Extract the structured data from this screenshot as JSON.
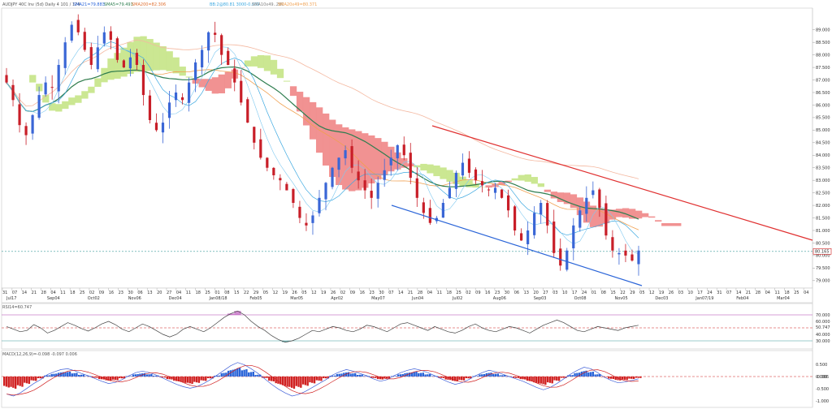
{
  "header": {
    "symbol_info": "AUDJPY 40C Inv (5d)  Daily  4  101 / 174",
    "sma21": "SMA21=79.883",
    "sma_b": "SMA5=79.491",
    "sma_c": "SMA200=82.306",
    "bb": "BB:2@80.81  3000-0.809",
    "ichimoku": "SMA10x49..280",
    "sma_d": "SMA20x49=80.371"
  },
  "colors": {
    "bull_candle": "#3a66d6",
    "bear_candle": "#c81e28",
    "cloud_bull": "#c8e68c",
    "cloud_bear": "#f08c8c",
    "sma_green": "#2e7d4f",
    "sma_orange": "#f0a050",
    "sma_cyan": "#3ca8e0",
    "trend_red": "#e03030",
    "trend_blue": "#2a64d8",
    "rsi_line": "#404040",
    "macd_hist_pos": "#2a64d8",
    "macd_hist_neg": "#d02020"
  },
  "chart_data": [
    {
      "type": "candlestick",
      "ylim": [
        78.8,
        89.8
      ],
      "price_ticks": [
        "89.000",
        "88.500",
        "88.000",
        "87.500",
        "87.000",
        "86.500",
        "86.000",
        "85.500",
        "85.000",
        "84.500",
        "84.000",
        "83.500",
        "83.000",
        "82.500",
        "82.000",
        "81.500",
        "81.000",
        "80.500",
        "80.000",
        "79.500",
        "79.000",
        "78.500"
      ],
      "current_price_label": "80.165",
      "x_tick_labels": [
        "31",
        "07",
        "14",
        "21",
        "28",
        "04",
        "11",
        "18",
        "25",
        "02",
        "09",
        "16",
        "23",
        "30",
        "06",
        "13",
        "20",
        "27",
        "04",
        "11",
        "18",
        "25",
        "01",
        "08",
        "15",
        "22",
        "29",
        "05",
        "12",
        "19",
        "26",
        "05",
        "12",
        "19",
        "26",
        "02",
        "09",
        "16",
        "23",
        "30",
        "07",
        "14",
        "21",
        "28",
        "04",
        "11",
        "18",
        "25",
        "02",
        "09",
        "16",
        "23",
        "30",
        "06",
        "13",
        "20",
        "27",
        "03",
        "10",
        "17",
        "24",
        "01",
        "08",
        "15",
        "22",
        "29",
        "05",
        "12",
        "19",
        "26",
        "03",
        "10",
        "17",
        "24",
        "31",
        "07",
        "14",
        "21",
        "28",
        "04",
        "11",
        "18",
        "25",
        "04"
      ],
      "month_labels": [
        "Jul17",
        "Sep04",
        "Oct02",
        "Nov06",
        "Dec04",
        "Jan08/18",
        "Feb05",
        "Mar05",
        "Apr02",
        "May07",
        "Jun04",
        "Jul02",
        "Aug06",
        "Sep03",
        "Oct08",
        "Nov05",
        "Dec03",
        "Jan07/19",
        "Feb04",
        "Mar04"
      ],
      "close_path": [
        86.9,
        86.2,
        85.2,
        84.8,
        85.6,
        86.4,
        86.9,
        86.7,
        87.6,
        88.5,
        89.2,
        88.9,
        88.2,
        87.6,
        88.3,
        88.9,
        88.6,
        87.8,
        87.5,
        87.9,
        87.6,
        86.4,
        85.4,
        85.0,
        85.3,
        86.1,
        86.5,
        86.2,
        86.9,
        87.7,
        88.2,
        88.9,
        88.8,
        88.0,
        87.6,
        86.9,
        86.1,
        85.3,
        84.5,
        83.9,
        83.5,
        83.2,
        83.0,
        82.6,
        82.1,
        81.5,
        81.2,
        81.6,
        82.3,
        82.9,
        83.5,
        83.9,
        84.2,
        83.5,
        83.0,
        82.6,
        82.3,
        82.9,
        83.4,
        83.9,
        84.4,
        84.0,
        83.1,
        82.3,
        81.7,
        81.3,
        81.5,
        82.1,
        82.7,
        83.3,
        83.7,
        83.3,
        83.0,
        82.8,
        82.6,
        82.7,
        82.3,
        81.8,
        81.0,
        80.6,
        81.0,
        81.7,
        82.1,
        81.2,
        80.1,
        79.6,
        80.2,
        81.2,
        81.8,
        82.3,
        82.6,
        81.9,
        80.8,
        80.2,
        80.1,
        80.0,
        79.8,
        80.2
      ],
      "trend_lines": [
        {
          "name": "resistance",
          "color": "#e03030",
          "from": {
            "x": 84.6,
            "label": "May-Jun"
          },
          "to": {
            "label": "Mar04"
          }
        },
        {
          "name": "support",
          "color": "#2a64d8"
        }
      ]
    },
    {
      "type": "line",
      "name": "RSI",
      "title": "RSI14=60.747",
      "ylim": [
        20,
        80
      ],
      "ticks": [
        "70.000",
        "60.000",
        "50.747",
        "40.000",
        "30.000"
      ],
      "levels": [
        70,
        50,
        30
      ],
      "values": [
        52,
        48,
        44,
        46,
        55,
        50,
        42,
        46,
        52,
        58,
        54,
        49,
        45,
        50,
        56,
        60,
        55,
        48,
        44,
        50,
        56,
        52,
        46,
        40,
        36,
        40,
        48,
        52,
        48,
        44,
        50,
        58,
        66,
        72,
        76,
        70,
        60,
        52,
        46,
        38,
        32,
        28,
        30,
        34,
        40,
        46,
        44,
        48,
        52,
        50,
        46,
        44,
        48,
        54,
        52,
        48,
        44,
        50,
        56,
        58,
        54,
        50,
        46,
        52,
        48,
        44,
        42,
        46,
        52,
        56,
        50,
        46,
        44,
        48,
        52,
        50,
        46,
        42,
        48,
        54,
        58,
        62,
        58,
        52,
        46,
        44,
        48,
        52,
        50,
        48,
        46,
        50,
        52,
        54
      ]
    },
    {
      "type": "bar",
      "name": "MACD",
      "title": "MACD(12,26,9)=-0.098 -0.097 0.006",
      "ylim": [
        -1.2,
        0.8
      ],
      "ticks": [
        "0.500",
        "0.000",
        "-0.006",
        "-0.500",
        "-1.000"
      ],
      "values": [
        -0.45,
        -0.5,
        -0.42,
        -0.3,
        -0.18,
        -0.08,
        0.05,
        0.12,
        0.18,
        0.2,
        0.15,
        0.08,
        0.02,
        -0.05,
        -0.12,
        -0.18,
        -0.15,
        -0.08,
        0.02,
        0.1,
        0.14,
        0.1,
        0.04,
        -0.04,
        -0.12,
        -0.2,
        -0.26,
        -0.3,
        -0.26,
        -0.18,
        -0.08,
        0.04,
        0.16,
        0.28,
        0.36,
        0.3,
        0.2,
        0.08,
        -0.06,
        -0.2,
        -0.32,
        -0.42,
        -0.5,
        -0.46,
        -0.38,
        -0.28,
        -0.18,
        -0.08,
        0.04,
        0.12,
        0.18,
        0.14,
        0.08,
        0.02,
        -0.06,
        -0.12,
        -0.08,
        0.02,
        0.1,
        0.16,
        0.2,
        0.16,
        0.1,
        0.02,
        -0.06,
        -0.14,
        -0.2,
        -0.16,
        -0.08,
        0.02,
        0.1,
        0.16,
        0.12,
        0.06,
        0.0,
        -0.06,
        -0.12,
        -0.2,
        -0.28,
        -0.34,
        -0.28,
        -0.18,
        -0.06,
        0.06,
        0.16,
        0.24,
        0.2,
        0.1,
        -0.02,
        -0.1,
        -0.16,
        -0.14,
        -0.1,
        -0.06
      ]
    }
  ]
}
